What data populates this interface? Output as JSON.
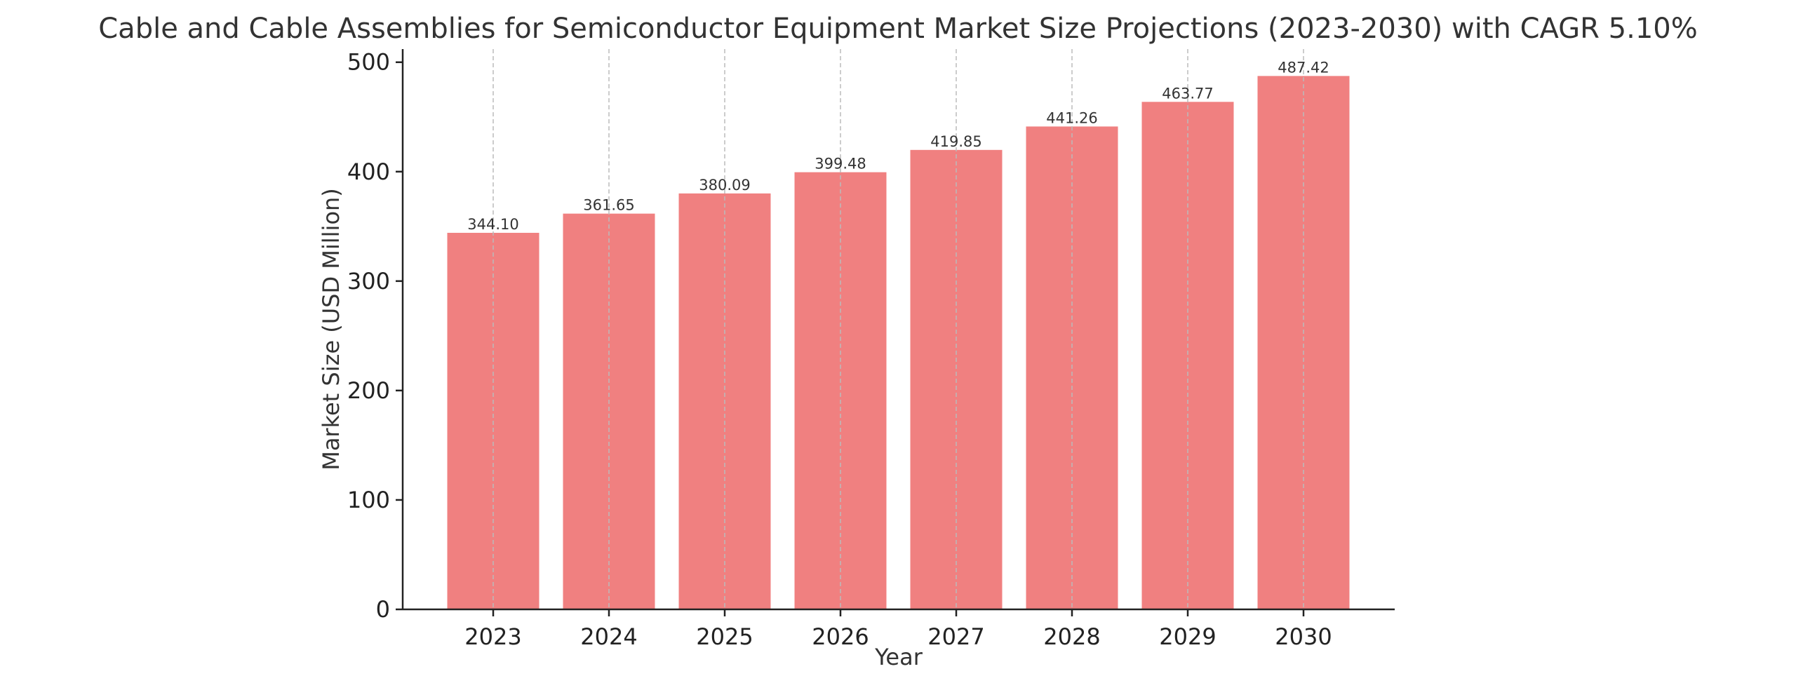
{
  "chart_data": {
    "type": "bar",
    "title": "Cable and Cable Assemblies for Semiconductor Equipment Market Size Projections (2023-2030) with CAGR 5.10%",
    "xlabel": "Year",
    "ylabel": "Market Size (USD Million)",
    "categories": [
      "2023",
      "2024",
      "2025",
      "2026",
      "2027",
      "2028",
      "2029",
      "2030"
    ],
    "values": [
      344.1,
      361.65,
      380.09,
      399.48,
      419.85,
      441.26,
      463.77,
      487.42
    ],
    "data_labels": [
      "344.10",
      "361.65",
      "380.09",
      "399.48",
      "419.85",
      "441.26",
      "463.77",
      "487.42"
    ],
    "ylim": [
      0,
      512
    ],
    "yticks": [
      0,
      100,
      200,
      300,
      400,
      500
    ],
    "grid": "vertical dashed",
    "bar_color": "#F08080",
    "grid_color": "#BBBBBB",
    "axis_color": "#222222"
  }
}
